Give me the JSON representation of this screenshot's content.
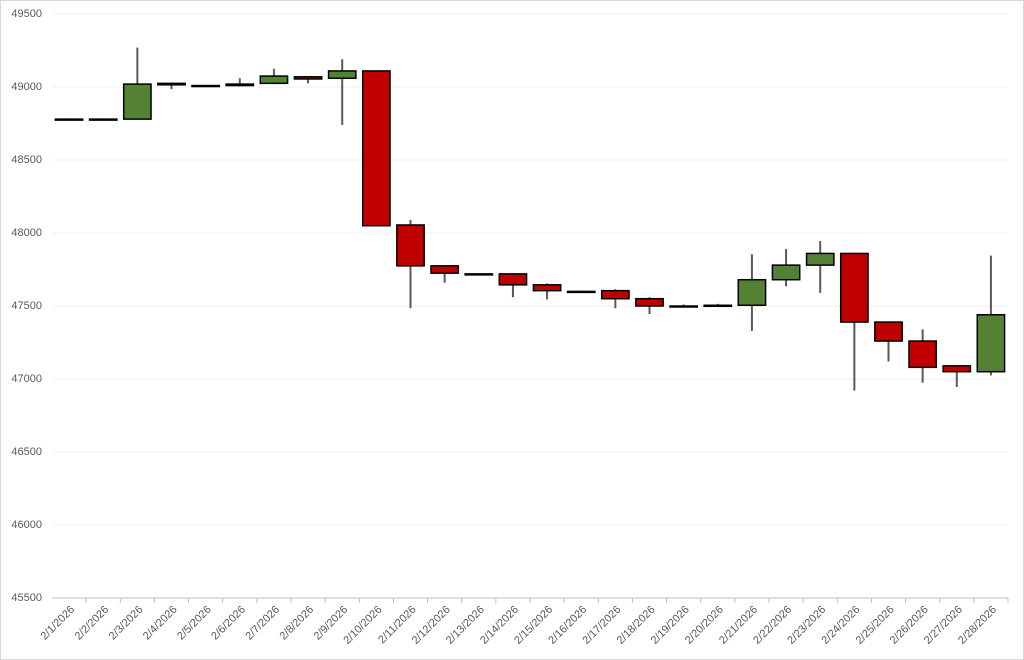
{
  "chart_data": {
    "type": "candlestick",
    "x": [
      "2/1/2026",
      "2/2/2026",
      "2/3/2026",
      "2/4/2026",
      "2/5/2026",
      "2/6/2026",
      "2/7/2026",
      "2/8/2026",
      "2/9/2026",
      "2/10/2026",
      "2/11/2026",
      "2/12/2026",
      "2/13/2026",
      "2/14/2026",
      "2/15/2026",
      "2/16/2026",
      "2/17/2026",
      "2/18/2026",
      "2/19/2026",
      "2/20/2026",
      "2/21/2026",
      "2/22/2026",
      "2/23/2026",
      "2/24/2026",
      "2/25/2026",
      "2/26/2026",
      "2/27/2026",
      "2/28/2026"
    ],
    "open": [
      48780,
      48780,
      48780,
      49015,
      49010,
      49010,
      49025,
      49070,
      49060,
      49110,
      48055,
      47775,
      47720,
      47720,
      47645,
      47600,
      47605,
      47550,
      47500,
      47500,
      47505,
      47680,
      47780,
      47860,
      47390,
      47260,
      47090,
      47050
    ],
    "high": [
      48785,
      48785,
      49270,
      49030,
      49012,
      49060,
      49125,
      49075,
      49190,
      49115,
      48090,
      47780,
      47725,
      47725,
      47655,
      47605,
      47615,
      47560,
      47510,
      47515,
      47855,
      47890,
      47945,
      47865,
      47395,
      47340,
      47095,
      47845
    ],
    "low": [
      48775,
      48775,
      48780,
      48985,
      49000,
      49005,
      49020,
      49025,
      48740,
      48045,
      47485,
      47660,
      47710,
      47560,
      47545,
      47590,
      47485,
      47445,
      47490,
      47495,
      47330,
      47635,
      47590,
      46920,
      47120,
      46975,
      46945,
      47025
    ],
    "close": [
      48780,
      48780,
      49020,
      49025,
      49005,
      49020,
      49075,
      49055,
      49110,
      48050,
      47775,
      47725,
      47715,
      47645,
      47605,
      47595,
      47550,
      47500,
      47495,
      47505,
      47680,
      47780,
      47860,
      47390,
      47260,
      47080,
      47050,
      47440
    ],
    "up_color": "#548235",
    "down_color": "#c00000",
    "ylim": [
      45500,
      49500
    ],
    "yticks": [
      45500,
      46000,
      46500,
      47000,
      47500,
      48000,
      48500,
      49000,
      49500
    ],
    "grid": true
  }
}
